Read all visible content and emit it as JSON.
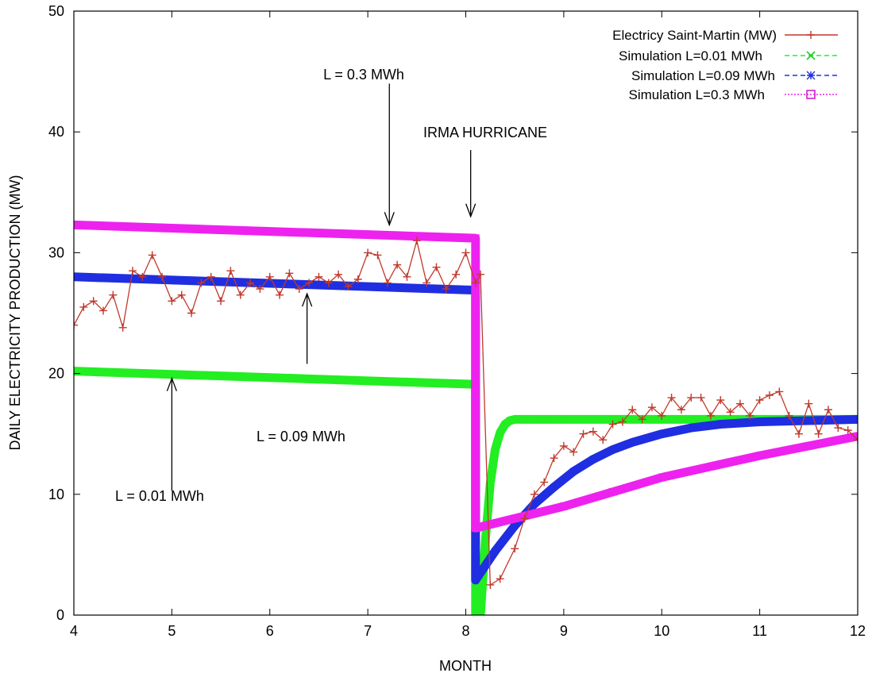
{
  "chart_data": {
    "type": "line",
    "xlabel": "MONTH",
    "ylabel": "DAILY ELECTRICITY PRODUCTION (MW)",
    "xlim": [
      4,
      12
    ],
    "ylim": [
      0,
      50
    ],
    "xticks": [
      4,
      5,
      6,
      7,
      8,
      9,
      10,
      11,
      12
    ],
    "yticks": [
      0,
      10,
      20,
      30,
      40,
      50
    ],
    "legend_position": "top-right",
    "grid": false,
    "series": [
      {
        "name": "Electricy Saint-Martin (MW)",
        "color": "#c0392b",
        "marker": "plus",
        "x": [
          4.0,
          4.1,
          4.2,
          4.3,
          4.4,
          4.5,
          4.6,
          4.7,
          4.8,
          4.9,
          5.0,
          5.1,
          5.2,
          5.3,
          5.4,
          5.5,
          5.6,
          5.7,
          5.8,
          5.9,
          6.0,
          6.1,
          6.2,
          6.3,
          6.4,
          6.5,
          6.6,
          6.7,
          6.8,
          6.9,
          7.0,
          7.1,
          7.2,
          7.3,
          7.4,
          7.5,
          7.6,
          7.7,
          7.8,
          7.9,
          8.0,
          8.1,
          8.15,
          8.25,
          8.35,
          8.5,
          8.6,
          8.7,
          8.8,
          8.9,
          9.0,
          9.1,
          9.2,
          9.3,
          9.4,
          9.5,
          9.6,
          9.7,
          9.8,
          9.9,
          10.0,
          10.1,
          10.2,
          10.3,
          10.4,
          10.5,
          10.6,
          10.7,
          10.8,
          10.9,
          11.0,
          11.1,
          11.2,
          11.3,
          11.4,
          11.5,
          11.6,
          11.7,
          11.8,
          11.9,
          12.0
        ],
        "y": [
          24,
          25.5,
          26,
          25.2,
          26.5,
          23.8,
          28.5,
          28,
          29.8,
          28,
          26,
          26.5,
          25,
          27.5,
          28,
          26,
          28.5,
          26.5,
          27.5,
          27,
          28,
          26.5,
          28.3,
          27,
          27.5,
          28,
          27.5,
          28.2,
          27.2,
          27.8,
          30,
          29.8,
          27.5,
          29,
          28,
          31,
          27.5,
          28.8,
          27,
          28.2,
          30,
          27.5,
          28.2,
          2.5,
          3,
          5.5,
          8,
          10,
          11,
          13,
          14,
          13.5,
          15,
          15.2,
          14.5,
          15.8,
          16,
          17,
          16.2,
          17.2,
          16.5,
          18,
          17,
          18,
          18,
          16.5,
          17.8,
          16.8,
          17.5,
          16.5,
          17.8,
          18.2,
          18.5,
          16.5,
          15,
          17.5,
          15,
          17,
          15.5,
          15.3,
          14.5
        ]
      },
      {
        "name": "Simulation L=0.01 MWh",
        "color": "#22ee22",
        "marker": "x",
        "x": [
          4,
          8.1,
          8.1,
          8.15,
          8.2,
          8.25,
          8.3,
          8.35,
          8.4,
          8.45,
          8.5,
          8.6,
          8.8,
          9,
          10,
          11,
          12
        ],
        "y": [
          20.2,
          19.1,
          0,
          0,
          6.2,
          10.9,
          13.7,
          15.1,
          15.8,
          16.1,
          16.2,
          16.2,
          16.2,
          16.2,
          16.2,
          16.2,
          16.2
        ]
      },
      {
        "name": "Simulation L=0.09 MWh",
        "color": "#1f2ee0",
        "marker": "star",
        "x": [
          4,
          8.1,
          8.1,
          8.3,
          8.5,
          8.7,
          8.9,
          9.1,
          9.3,
          9.5,
          9.7,
          10,
          10.3,
          10.6,
          11,
          11.5,
          12
        ],
        "y": [
          28,
          26.9,
          2.9,
          5.3,
          7.4,
          9.2,
          10.6,
          11.9,
          12.9,
          13.7,
          14.3,
          15.0,
          15.5,
          15.8,
          16.0,
          16.1,
          16.2
        ]
      },
      {
        "name": "Simulation L=0.3 MWh",
        "color": "#ee22ee",
        "marker": "square",
        "x": [
          4,
          8.1,
          8.1,
          8.5,
          9,
          9.5,
          10,
          10.5,
          11,
          11.5,
          12
        ],
        "y": [
          32.3,
          31.2,
          7.2,
          8.0,
          9.0,
          10.2,
          11.4,
          12.3,
          13.2,
          14.0,
          14.8
        ]
      }
    ],
    "annotations": [
      {
        "text": "L = 0.3 MWh",
        "arrow_x": 7.22,
        "arrow_from_y": 44,
        "arrow_to_y": 32.3,
        "arrow_dir": "down"
      },
      {
        "text": "IRMA HURRICANE",
        "arrow_x": 8.05,
        "arrow_from_y": 38.5,
        "arrow_to_y": 33,
        "arrow_dir": "down"
      },
      {
        "text": "L = 0.09 MWh",
        "arrow_x": 6.38,
        "arrow_from_y": 20.8,
        "arrow_to_y": 26.6,
        "arrow_dir": "up"
      },
      {
        "text": "L = 0.01 MWh",
        "arrow_x": 5.0,
        "arrow_from_y": 10.3,
        "arrow_to_y": 19.6,
        "arrow_dir": "up"
      }
    ]
  }
}
